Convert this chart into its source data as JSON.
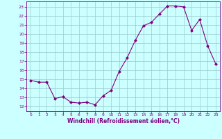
{
  "x": [
    0,
    1,
    2,
    3,
    4,
    5,
    6,
    7,
    8,
    9,
    10,
    11,
    12,
    13,
    14,
    15,
    16,
    17,
    18,
    19,
    20,
    21,
    22,
    23
  ],
  "y": [
    14.9,
    14.7,
    14.7,
    12.9,
    13.1,
    12.5,
    12.4,
    12.5,
    12.2,
    13.2,
    13.8,
    15.9,
    17.4,
    19.3,
    20.9,
    21.3,
    22.2,
    23.1,
    23.1,
    23.0,
    20.4,
    21.6,
    18.7,
    16.7
  ],
  "line_color": "#800080",
  "marker_color": "#800080",
  "bg_color": "#ccffff",
  "grid_color": "#99cccc",
  "xlabel": "Windchill (Refroidissement éolien,°C)",
  "xlabel_color": "#800080",
  "tick_color": "#800080",
  "yticks": [
    12,
    13,
    14,
    15,
    16,
    17,
    18,
    19,
    20,
    21,
    22,
    23
  ],
  "xticks": [
    0,
    1,
    2,
    3,
    4,
    5,
    6,
    7,
    8,
    9,
    10,
    11,
    12,
    13,
    14,
    15,
    16,
    17,
    18,
    19,
    20,
    21,
    22,
    23
  ]
}
